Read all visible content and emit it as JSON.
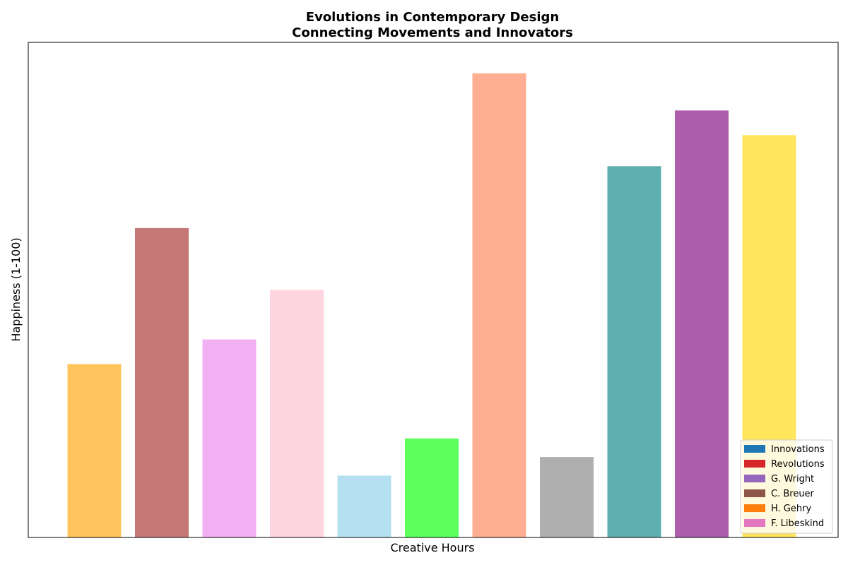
{
  "chart_data": {
    "type": "bar",
    "title": "Evolutions in Contemporary Design",
    "subtitle": "Connecting Movements and Innovators",
    "xlabel": "Creative Hours",
    "ylabel": "Happiness (1-100)",
    "ylim": [
      0,
      80
    ],
    "x_ticks_shown": false,
    "y_ticks_shown": false,
    "values": [
      28,
      50,
      32,
      40,
      10,
      16,
      75,
      13,
      60,
      69,
      65
    ],
    "bar_colors": [
      "#ffb533",
      "#b85654",
      "#f09df0",
      "#fecbd6",
      "#a2d8ee",
      "#35ff35",
      "#ff9b76",
      "#9b9b9b",
      "#359b9b",
      "#9a3598",
      "#ffe035"
    ],
    "legend": {
      "placement": "lower-right",
      "entries": [
        {
          "label": "Innovations",
          "color": "#1f77b4"
        },
        {
          "label": "Revolutions",
          "color": "#d62728"
        },
        {
          "label": "G. Wright",
          "color": "#9467bd"
        },
        {
          "label": "C. Breuer",
          "color": "#8c564b"
        },
        {
          "label": "H. Gehry",
          "color": "#ff7f0e"
        },
        {
          "label": "F. Libeskind",
          "color": "#e377c2"
        }
      ]
    }
  }
}
